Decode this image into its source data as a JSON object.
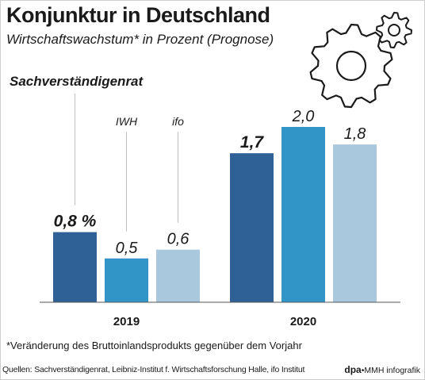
{
  "header": {
    "title": "Konjunktur in Deutschland",
    "subtitle": "Wirtschaftswachstum* in Prozent (Prognose)"
  },
  "footnote": "*Veränderung des Bruttoinlandsprodukts gegenüber dem Vorjahr",
  "sources": "Quellen: Sachverständigenrat, Leibniz-Institut f. Wirtschaftsforschung Halle, ifo Institut",
  "credit": {
    "agency": "dpa",
    "text": "•MMH infografik"
  },
  "colors": {
    "sachverstaendigenrat": "#2f6196",
    "iwh": "#3195c8",
    "ifo": "#a9c8de",
    "leader_line": "#bfbfbf",
    "gear": "#1a1a1a"
  },
  "decorations": [
    "gears-icon"
  ],
  "chart_data": {
    "type": "bar",
    "categories": [
      "2019",
      "2020"
    ],
    "series": [
      {
        "name": "Sachverständigenrat",
        "values": [
          0.8,
          1.7
        ],
        "labels": [
          "0,8 %",
          "1,7"
        ],
        "bold": true
      },
      {
        "name": "IWH",
        "values": [
          0.5,
          2.0
        ],
        "labels": [
          "0,5",
          "2,0"
        ],
        "bold": false
      },
      {
        "name": "ifo",
        "values": [
          0.6,
          1.8
        ],
        "labels": [
          "0,6",
          "1,8"
        ],
        "bold": false
      }
    ],
    "title": "Konjunktur in Deutschland",
    "xlabel": "",
    "ylabel": "",
    "ylim": [
      0,
      2.0
    ],
    "grid": false,
    "legend": "series names placed above the 2019 bars"
  }
}
